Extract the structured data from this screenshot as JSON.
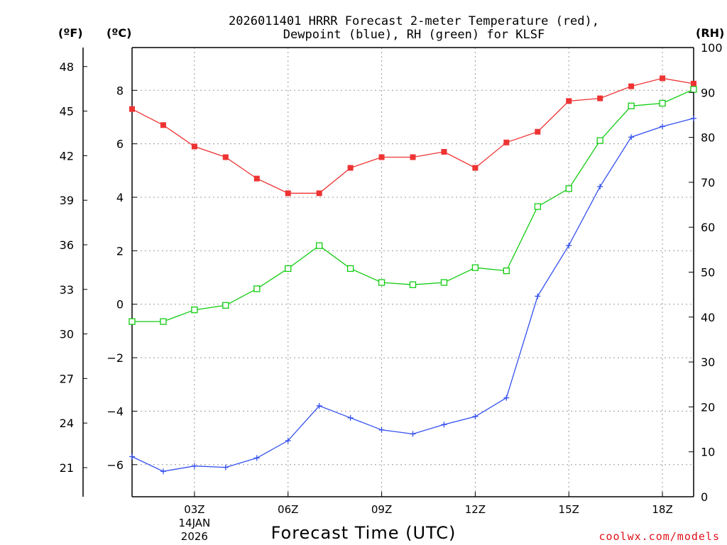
{
  "chart_data": {
    "type": "line",
    "title_line1": "2026011401 HRRR Forecast 2-meter Temperature (red),",
    "title_line2": "Dewpoint (blue), RH (green) for KLSF",
    "xlabel": "Forecast Time (UTC)",
    "unit_f": "(ºF)",
    "unit_c": "(ºC)",
    "unit_rh": "(RH)",
    "credit": "coolwx.com/models",
    "x_hours": [
      1,
      2,
      3,
      4,
      5,
      6,
      7,
      8,
      9,
      10,
      11,
      12,
      13,
      14,
      15,
      16,
      17,
      18,
      19
    ],
    "xlim": [
      1,
      19
    ],
    "x_ticks": [
      {
        "hour": 3,
        "label": "03Z",
        "line2": "14JAN",
        "line3": "2026"
      },
      {
        "hour": 6,
        "label": "06Z",
        "line2": "",
        "line3": ""
      },
      {
        "hour": 9,
        "label": "09Z",
        "line2": "",
        "line3": ""
      },
      {
        "hour": 12,
        "label": "12Z",
        "line2": "",
        "line3": ""
      },
      {
        "hour": 15,
        "label": "15Z",
        "line2": "",
        "line3": ""
      },
      {
        "hour": 18,
        "label": "18Z",
        "line2": "",
        "line3": ""
      }
    ],
    "ylim_c": [
      -7.2,
      9.6
    ],
    "y_ticks_c": [
      "8",
      "6",
      "4",
      "2",
      "0",
      "−2",
      "−4",
      "−6"
    ],
    "y_ticks_c_values": [
      8,
      6,
      4,
      2,
      0,
      -2,
      -4,
      -6
    ],
    "y_ticks_f": [
      "48",
      "45",
      "42",
      "39",
      "36",
      "33",
      "30",
      "27",
      "24",
      "21"
    ],
    "y_ticks_f_values": [
      48,
      45,
      42,
      39,
      36,
      33,
      30,
      27,
      24,
      21
    ],
    "ylim_rh": [
      0,
      100
    ],
    "y_ticks_rh": [
      "100",
      "90",
      "80",
      "70",
      "60",
      "50",
      "40",
      "30",
      "20",
      "10",
      "0"
    ],
    "y_ticks_rh_values": [
      100,
      90,
      80,
      70,
      60,
      50,
      40,
      30,
      20,
      10,
      0
    ],
    "series": [
      {
        "name": "2-meter Temperature",
        "unit": "C",
        "color": "#ee3333",
        "marker": "filled-square",
        "values": [
          7.3,
          6.7,
          5.9,
          5.5,
          4.7,
          4.15,
          4.15,
          5.1,
          5.5,
          5.5,
          5.7,
          5.1,
          6.05,
          6.45,
          7.6,
          7.7,
          8.15,
          8.45,
          8.25
        ]
      },
      {
        "name": "Dewpoint",
        "unit": "C",
        "color": "#3350ee",
        "marker": "plus",
        "values": [
          -5.7,
          -6.25,
          -6.05,
          -6.1,
          -5.75,
          -5.1,
          -3.8,
          -4.25,
          -4.7,
          -4.85,
          -4.5,
          -4.2,
          -3.5,
          0.3,
          2.2,
          4.4,
          6.25,
          6.65,
          6.95
        ]
      },
      {
        "name": "Relative Humidity",
        "unit": "RH",
        "color": "#11cc11",
        "marker": "open-square",
        "values": [
          39.0,
          39.0,
          41.6,
          42.6,
          46.3,
          50.8,
          55.9,
          50.8,
          47.7,
          47.2,
          47.7,
          51.0,
          50.3,
          64.6,
          68.6,
          79.3,
          87.0,
          87.6,
          90.7
        ]
      }
    ]
  }
}
